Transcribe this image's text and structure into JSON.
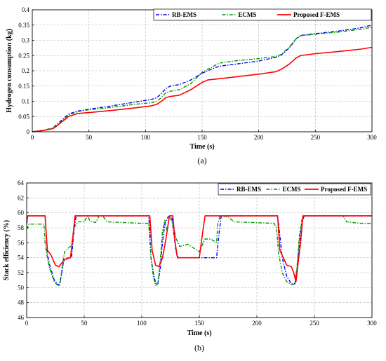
{
  "chart_data": [
    {
      "type": "line",
      "caption": "(a)",
      "xlabel": "Time (s)",
      "ylabel": "Hydrogen consumption (kg)",
      "xlim": [
        0,
        300
      ],
      "ylim": [
        0,
        0.4
      ],
      "xticks": [
        0,
        50,
        100,
        150,
        200,
        250,
        300
      ],
      "yticks": [
        0,
        0.05,
        0.1,
        0.15,
        0.2,
        0.25,
        0.3,
        0.35,
        0.4
      ],
      "yticklabels": [
        "0",
        "0.05",
        "0.1",
        "0.15",
        "0.2",
        "0.25",
        "0.3",
        "0.35",
        "0.4"
      ],
      "grid": true,
      "legend": "top-right",
      "series": [
        {
          "name": "RB-EMS",
          "color": "#0000ff",
          "style": "dashdot",
          "points": [
            [
              0,
              0
            ],
            [
              10,
              0.005
            ],
            [
              18,
              0.012
            ],
            [
              22,
              0.025
            ],
            [
              28,
              0.045
            ],
            [
              32,
              0.058
            ],
            [
              40,
              0.068
            ],
            [
              50,
              0.074
            ],
            [
              70,
              0.085
            ],
            [
              90,
              0.097
            ],
            [
              105,
              0.106
            ],
            [
              110,
              0.112
            ],
            [
              114,
              0.125
            ],
            [
              118,
              0.142
            ],
            [
              122,
              0.15
            ],
            [
              130,
              0.155
            ],
            [
              140,
              0.17
            ],
            [
              150,
              0.192
            ],
            [
              160,
              0.208
            ],
            [
              165,
              0.215
            ],
            [
              180,
              0.222
            ],
            [
              200,
              0.232
            ],
            [
              215,
              0.244
            ],
            [
              220,
              0.252
            ],
            [
              227,
              0.275
            ],
            [
              233,
              0.305
            ],
            [
              237,
              0.316
            ],
            [
              250,
              0.322
            ],
            [
              270,
              0.33
            ],
            [
              290,
              0.341
            ],
            [
              300,
              0.35
            ]
          ]
        },
        {
          "name": "ECMS",
          "color": "#009900",
          "style": "dashdot",
          "points": [
            [
              0,
              0
            ],
            [
              10,
              0.005
            ],
            [
              18,
              0.012
            ],
            [
              22,
              0.022
            ],
            [
              28,
              0.042
            ],
            [
              32,
              0.055
            ],
            [
              40,
              0.066
            ],
            [
              50,
              0.072
            ],
            [
              70,
              0.08
            ],
            [
              90,
              0.09
            ],
            [
              105,
              0.095
            ],
            [
              110,
              0.1
            ],
            [
              114,
              0.112
            ],
            [
              118,
              0.128
            ],
            [
              122,
              0.133
            ],
            [
              130,
              0.138
            ],
            [
              140,
              0.158
            ],
            [
              150,
              0.195
            ],
            [
              160,
              0.215
            ],
            [
              165,
              0.225
            ],
            [
              180,
              0.233
            ],
            [
              200,
              0.24
            ],
            [
              215,
              0.247
            ],
            [
              220,
              0.254
            ],
            [
              227,
              0.278
            ],
            [
              233,
              0.305
            ],
            [
              237,
              0.315
            ],
            [
              250,
              0.32
            ],
            [
              270,
              0.327
            ],
            [
              290,
              0.336
            ],
            [
              300,
              0.343
            ]
          ]
        },
        {
          "name": "Proposed F-EMS",
          "color": "#ff0000",
          "style": "solid",
          "points": [
            [
              0,
              0
            ],
            [
              10,
              0.004
            ],
            [
              18,
              0.01
            ],
            [
              22,
              0.02
            ],
            [
              28,
              0.038
            ],
            [
              32,
              0.05
            ],
            [
              40,
              0.06
            ],
            [
              50,
              0.063
            ],
            [
              70,
              0.07
            ],
            [
              90,
              0.078
            ],
            [
              105,
              0.085
            ],
            [
              110,
              0.09
            ],
            [
              114,
              0.1
            ],
            [
              118,
              0.112
            ],
            [
              122,
              0.116
            ],
            [
              130,
              0.12
            ],
            [
              140,
              0.138
            ],
            [
              150,
              0.162
            ],
            [
              155,
              0.17
            ],
            [
              170,
              0.176
            ],
            [
              200,
              0.189
            ],
            [
              215,
              0.197
            ],
            [
              220,
              0.205
            ],
            [
              227,
              0.222
            ],
            [
              233,
              0.242
            ],
            [
              237,
              0.25
            ],
            [
              250,
              0.256
            ],
            [
              270,
              0.263
            ],
            [
              290,
              0.271
            ],
            [
              300,
              0.277
            ]
          ]
        }
      ]
    },
    {
      "type": "line",
      "caption": "(b)",
      "xlabel": "Time (s)",
      "ylabel": "Stack efficiency (%)",
      "xlim": [
        0,
        300
      ],
      "ylim": [
        46,
        64
      ],
      "xticks": [
        0,
        50,
        100,
        150,
        200,
        250,
        300
      ],
      "yticks": [
        46,
        48,
        50,
        52,
        54,
        56,
        58,
        60,
        62,
        64
      ],
      "yticklabels": [
        "46",
        "48",
        "50",
        "52",
        "54",
        "56",
        "58",
        "60",
        "62",
        "64"
      ],
      "grid": true,
      "legend": "top-right",
      "series": [
        {
          "name": "RB-EMS",
          "color": "#0000ff",
          "style": "dashdot",
          "points": [
            [
              0,
              58.5
            ],
            [
              1,
              59.6
            ],
            [
              16,
              59.6
            ],
            [
              17,
              57.0
            ],
            [
              18,
              54.5
            ],
            [
              20,
              53.0
            ],
            [
              24,
              51.0
            ],
            [
              28,
              50.3
            ],
            [
              30,
              51.5
            ],
            [
              32,
              53.5
            ],
            [
              36,
              54.0
            ],
            [
              39,
              54.0
            ],
            [
              41,
              57.5
            ],
            [
              43,
              59.6
            ],
            [
              106,
              59.6
            ],
            [
              107,
              57.5
            ],
            [
              108,
              54.0
            ],
            [
              110,
              52.0
            ],
            [
              112,
              50.6
            ],
            [
              114,
              50.5
            ],
            [
              116,
              52.5
            ],
            [
              118,
              56.0
            ],
            [
              120,
              58.5
            ],
            [
              123,
              59.5
            ],
            [
              126,
              59.6
            ],
            [
              128,
              57.0
            ],
            [
              130,
              54.5
            ],
            [
              132,
              54.0
            ],
            [
              165,
              54.0
            ],
            [
              167,
              57.0
            ],
            [
              169,
              59.6
            ],
            [
              218,
              59.6
            ],
            [
              220,
              57.0
            ],
            [
              222,
              54.0
            ],
            [
              226,
              51.5
            ],
            [
              230,
              50.5
            ],
            [
              233,
              50.5
            ],
            [
              235,
              52.5
            ],
            [
              237,
              56.0
            ],
            [
              239,
              58.5
            ],
            [
              241,
              59.6
            ],
            [
              300,
              59.6
            ]
          ]
        },
        {
          "name": "ECMS",
          "color": "#009900",
          "style": "dashdot",
          "points": [
            [
              0,
              57.8
            ],
            [
              2,
              58.5
            ],
            [
              15,
              58.5
            ],
            [
              16,
              56.0
            ],
            [
              18,
              54.0
            ],
            [
              20,
              52.5
            ],
            [
              24,
              50.8
            ],
            [
              27,
              50.3
            ],
            [
              29,
              50.4
            ],
            [
              31,
              53.0
            ],
            [
              33,
              54.8
            ],
            [
              37,
              55.4
            ],
            [
              39,
              55.6
            ],
            [
              41,
              58.0
            ],
            [
              45,
              58.8
            ],
            [
              50,
              58.8
            ],
            [
              53,
              59.6
            ],
            [
              55,
              58.9
            ],
            [
              60,
              58.7
            ],
            [
              63,
              59.6
            ],
            [
              66,
              59.6
            ],
            [
              70,
              58.8
            ],
            [
              100,
              58.6
            ],
            [
              106,
              58.6
            ],
            [
              108,
              54.0
            ],
            [
              110,
              51.5
            ],
            [
              112,
              50.3
            ],
            [
              114,
              50.5
            ],
            [
              116,
              53.5
            ],
            [
              118,
              57.5
            ],
            [
              120,
              59.0
            ],
            [
              122,
              57.5
            ],
            [
              124,
              59.6
            ],
            [
              127,
              58.5
            ],
            [
              130,
              56.5
            ],
            [
              133,
              55.5
            ],
            [
              140,
              55.8
            ],
            [
              145,
              55.3
            ],
            [
              150,
              54.8
            ],
            [
              152,
              55.5
            ],
            [
              155,
              56.5
            ],
            [
              160,
              56.5
            ],
            [
              165,
              56.0
            ],
            [
              166,
              58.5
            ],
            [
              168,
              59.6
            ],
            [
              175,
              59.5
            ],
            [
              180,
              58.8
            ],
            [
              215,
              58.6
            ],
            [
              217,
              58.0
            ],
            [
              219,
              54.5
            ],
            [
              222,
              52.0
            ],
            [
              226,
              50.8
            ],
            [
              230,
              50.4
            ],
            [
              233,
              50.5
            ],
            [
              235,
              53.0
            ],
            [
              237,
              57.0
            ],
            [
              239,
              59.0
            ],
            [
              241,
              59.6
            ],
            [
              275,
              59.6
            ],
            [
              278,
              58.8
            ],
            [
              290,
              58.6
            ],
            [
              300,
              58.6
            ]
          ]
        },
        {
          "name": "Proposed F-EMS",
          "color": "#ff0000",
          "style": "solid",
          "points": [
            [
              0,
              58.8
            ],
            [
              1,
              59.6
            ],
            [
              16,
              59.6
            ],
            [
              18,
              55.0
            ],
            [
              21,
              54.4
            ],
            [
              25,
              53.0
            ],
            [
              28,
              52.8
            ],
            [
              33,
              53.8
            ],
            [
              38,
              54.0
            ],
            [
              40,
              56.5
            ],
            [
              42,
              59.6
            ],
            [
              107,
              59.6
            ],
            [
              109,
              55.0
            ],
            [
              112,
              53.0
            ],
            [
              115,
              52.8
            ],
            [
              118,
              54.0
            ],
            [
              121,
              56.5
            ],
            [
              124,
              59.6
            ],
            [
              127,
              59.6
            ],
            [
              129,
              56.0
            ],
            [
              131,
              54.0
            ],
            [
              150,
              54.0
            ],
            [
              153,
              57.5
            ],
            [
              155,
              59.6
            ],
            [
              218,
              59.6
            ],
            [
              220,
              55.0
            ],
            [
              223,
              54.0
            ],
            [
              226,
              53.0
            ],
            [
              230,
              52.8
            ],
            [
              232,
              52.0
            ],
            [
              234,
              50.8
            ],
            [
              236,
              53.5
            ],
            [
              238,
              56.0
            ],
            [
              240,
              59.6
            ],
            [
              300,
              59.6
            ]
          ]
        }
      ]
    }
  ]
}
